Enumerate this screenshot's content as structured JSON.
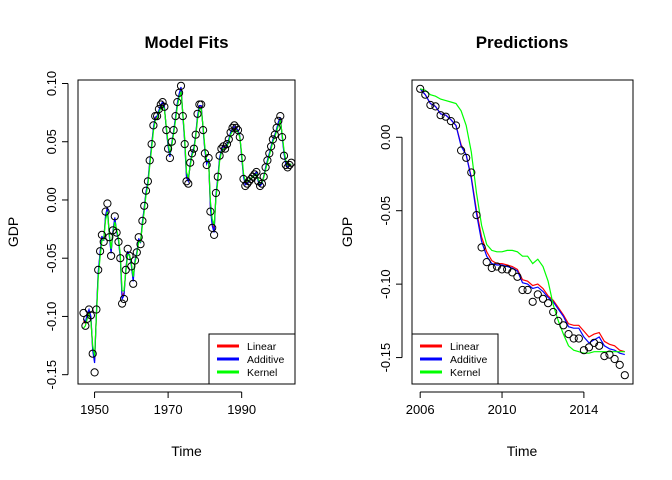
{
  "chart_data": [
    {
      "type": "line",
      "title": "Model Fits",
      "xlabel": "Time",
      "ylabel": "GDP",
      "xlim": [
        1945.5,
        2004.5
      ],
      "ylim": [
        -0.158,
        0.103
      ],
      "x_ticks": [
        1950,
        1970,
        1990
      ],
      "y_ticks": [
        -0.15,
        -0.1,
        -0.05,
        0.0,
        0.05,
        0.1
      ],
      "y_tick_labels": [
        "-0.15",
        "-0.10",
        "-0.05",
        "0.00",
        "0.05",
        "0.10"
      ],
      "grid": false,
      "legend_position": "bottom-right",
      "observed": {
        "x": [
          1947.0,
          1947.5,
          1948.0,
          1948.5,
          1949.0,
          1949.5,
          1950.0,
          1950.5,
          1951.0,
          1951.5,
          1952.0,
          1952.5,
          1953.0,
          1953.5,
          1954.0,
          1954.5,
          1955.0,
          1955.5,
          1956.0,
          1956.5,
          1957.0,
          1957.5,
          1958.0,
          1958.5,
          1959.0,
          1959.5,
          1960.0,
          1960.5,
          1961.0,
          1961.5,
          1962.0,
          1962.5,
          1963.0,
          1963.5,
          1964.0,
          1964.5,
          1965.0,
          1965.5,
          1966.0,
          1966.5,
          1967.0,
          1967.5,
          1968.0,
          1968.5,
          1969.0,
          1969.5,
          1970.0,
          1970.5,
          1971.0,
          1971.5,
          1972.0,
          1972.5,
          1973.0,
          1973.5,
          1974.0,
          1974.5,
          1975.0,
          1975.5,
          1976.0,
          1976.5,
          1977.0,
          1977.5,
          1978.0,
          1978.5,
          1979.0,
          1979.5,
          1980.0,
          1980.5,
          1981.0,
          1981.5,
          1982.0,
          1982.5,
          1983.0,
          1983.5,
          1984.0,
          1984.5,
          1985.0,
          1985.5,
          1986.0,
          1986.5,
          1987.0,
          1987.5,
          1988.0,
          1988.5,
          1989.0,
          1989.5,
          1990.0,
          1990.5,
          1991.0,
          1991.5,
          1992.0,
          1992.5,
          1993.0,
          1993.5,
          1994.0,
          1994.5,
          1995.0,
          1995.5,
          1996.0,
          1996.5,
          1997.0,
          1997.5,
          1998.0,
          1998.5,
          1999.0,
          1999.5,
          2000.0,
          2000.5,
          2001.0,
          2001.5,
          2002.0,
          2002.5,
          2003.0,
          2003.5
        ],
        "y": [
          -0.097,
          -0.108,
          -0.102,
          -0.094,
          -0.099,
          -0.132,
          -0.148,
          -0.094,
          -0.06,
          -0.044,
          -0.03,
          -0.036,
          -0.01,
          -0.003,
          -0.032,
          -0.048,
          -0.026,
          -0.014,
          -0.028,
          -0.036,
          -0.05,
          -0.089,
          -0.085,
          -0.06,
          -0.042,
          -0.048,
          -0.057,
          -0.072,
          -0.052,
          -0.045,
          -0.032,
          -0.038,
          -0.018,
          -0.005,
          0.008,
          0.016,
          0.034,
          0.048,
          0.064,
          0.072,
          0.072,
          0.078,
          0.082,
          0.084,
          0.08,
          0.06,
          0.044,
          0.036,
          0.05,
          0.06,
          0.072,
          0.084,
          0.092,
          0.098,
          0.072,
          0.048,
          0.016,
          0.014,
          0.032,
          0.04,
          0.044,
          0.056,
          0.074,
          0.082,
          0.082,
          0.06,
          0.04,
          0.03,
          0.036,
          -0.01,
          -0.024,
          -0.03,
          0.006,
          0.02,
          0.038,
          0.044,
          0.046,
          0.044,
          0.048,
          0.052,
          0.058,
          0.062,
          0.064,
          0.062,
          0.06,
          0.054,
          0.036,
          0.018,
          0.012,
          0.014,
          0.016,
          0.018,
          0.02,
          0.022,
          0.024,
          0.016,
          0.012,
          0.014,
          0.02,
          0.028,
          0.034,
          0.04,
          0.046,
          0.052,
          0.056,
          0.062,
          0.068,
          0.072,
          0.054,
          0.038,
          0.03,
          0.028,
          0.03,
          0.032
        ]
      },
      "series": [
        {
          "name": "Linear",
          "color": "#ff0000",
          "values": [
            -0.104,
            -0.106,
            -0.1,
            -0.096,
            -0.102,
            -0.128,
            -0.138,
            -0.098,
            -0.064,
            -0.046,
            -0.032,
            -0.034,
            -0.014,
            -0.007,
            -0.03,
            -0.044,
            -0.028,
            -0.017,
            -0.026,
            -0.034,
            -0.049,
            -0.082,
            -0.08,
            -0.061,
            -0.045,
            -0.047,
            -0.055,
            -0.068,
            -0.053,
            -0.046,
            -0.034,
            -0.036,
            -0.02,
            -0.008,
            0.006,
            0.015,
            0.031,
            0.046,
            0.061,
            0.07,
            0.071,
            0.076,
            0.081,
            0.083,
            0.079,
            0.062,
            0.047,
            0.038,
            0.048,
            0.058,
            0.07,
            0.082,
            0.09,
            0.096,
            0.074,
            0.051,
            0.021,
            0.017,
            0.03,
            0.039,
            0.044,
            0.055,
            0.071,
            0.08,
            0.08,
            0.062,
            0.043,
            0.032,
            0.034,
            -0.005,
            -0.02,
            -0.026,
            0.003,
            0.018,
            0.035,
            0.042,
            0.045,
            0.044,
            0.047,
            0.051,
            0.057,
            0.06,
            0.062,
            0.061,
            0.059,
            0.054,
            0.038,
            0.021,
            0.014,
            0.015,
            0.016,
            0.018,
            0.02,
            0.022,
            0.023,
            0.017,
            0.013,
            0.015,
            0.02,
            0.027,
            0.033,
            0.039,
            0.045,
            0.051,
            0.055,
            0.06,
            0.066,
            0.07,
            0.056,
            0.041,
            0.032,
            0.029,
            0.03,
            0.031
          ]
        },
        {
          "name": "Additive",
          "color": "#0000ff",
          "values": [
            -0.102,
            -0.105,
            -0.098,
            -0.094,
            -0.1,
            -0.129,
            -0.14,
            -0.097,
            -0.062,
            -0.045,
            -0.031,
            -0.035,
            -0.013,
            -0.006,
            -0.031,
            -0.046,
            -0.027,
            -0.015,
            -0.027,
            -0.035,
            -0.05,
            -0.085,
            -0.082,
            -0.06,
            -0.044,
            -0.048,
            -0.056,
            -0.07,
            -0.052,
            -0.045,
            -0.033,
            -0.037,
            -0.019,
            -0.007,
            0.007,
            0.016,
            0.032,
            0.047,
            0.062,
            0.071,
            0.072,
            0.077,
            0.082,
            0.084,
            0.08,
            0.061,
            0.046,
            0.037,
            0.049,
            0.059,
            0.071,
            0.083,
            0.091,
            0.097,
            0.073,
            0.05,
            0.019,
            0.016,
            0.031,
            0.04,
            0.045,
            0.056,
            0.072,
            0.081,
            0.081,
            0.061,
            0.042,
            0.031,
            0.035,
            -0.007,
            -0.022,
            -0.028,
            0.004,
            0.019,
            0.036,
            0.043,
            0.046,
            0.045,
            0.048,
            0.052,
            0.058,
            0.061,
            0.063,
            0.062,
            0.06,
            0.055,
            0.037,
            0.02,
            0.013,
            0.014,
            0.016,
            0.018,
            0.02,
            0.022,
            0.024,
            0.016,
            0.012,
            0.014,
            0.02,
            0.028,
            0.034,
            0.04,
            0.046,
            0.052,
            0.056,
            0.061,
            0.067,
            0.071,
            0.055,
            0.04,
            0.031,
            0.028,
            0.03,
            0.031
          ]
        },
        {
          "name": "Kernel",
          "color": "#00ff00",
          "values": [
            -0.11,
            -0.108,
            -0.102,
            -0.098,
            -0.104,
            -0.125,
            -0.134,
            -0.1,
            -0.067,
            -0.049,
            -0.035,
            -0.034,
            -0.017,
            -0.01,
            -0.029,
            -0.042,
            -0.029,
            -0.019,
            -0.025,
            -0.033,
            -0.047,
            -0.078,
            -0.078,
            -0.062,
            -0.047,
            -0.047,
            -0.054,
            -0.066,
            -0.054,
            -0.047,
            -0.036,
            -0.036,
            -0.022,
            -0.01,
            0.004,
            0.013,
            0.029,
            0.044,
            0.059,
            0.068,
            0.07,
            0.075,
            0.079,
            0.081,
            0.078,
            0.063,
            0.049,
            0.04,
            0.047,
            0.057,
            0.068,
            0.08,
            0.088,
            0.093,
            0.075,
            0.053,
            0.024,
            0.019,
            0.029,
            0.038,
            0.043,
            0.054,
            0.069,
            0.078,
            0.078,
            0.063,
            0.045,
            0.034,
            0.033,
            -0.001,
            -0.016,
            -0.022,
            0.001,
            0.016,
            0.033,
            0.041,
            0.044,
            0.044,
            0.046,
            0.05,
            0.056,
            0.059,
            0.061,
            0.06,
            0.058,
            0.054,
            0.04,
            0.023,
            0.016,
            0.016,
            0.017,
            0.018,
            0.02,
            0.021,
            0.022,
            0.018,
            0.014,
            0.015,
            0.019,
            0.026,
            0.032,
            0.038,
            0.044,
            0.05,
            0.054,
            0.059,
            0.064,
            0.068,
            0.057,
            0.043,
            0.034,
            0.03,
            0.03,
            0.031
          ]
        }
      ]
    },
    {
      "type": "line",
      "title": "Predictions",
      "xlabel": "Time",
      "ylabel": "GDP",
      "xlim": [
        2005.6,
        2016.4
      ],
      "ylim": [
        -0.168,
        0.039
      ],
      "x_ticks": [
        2006,
        2010,
        2014
      ],
      "y_ticks": [
        -0.15,
        -0.1,
        -0.05,
        0.0
      ],
      "y_tick_labels": [
        "-0.15",
        "-0.10",
        "-0.05",
        "0.00"
      ],
      "grid": false,
      "legend_position": "bottom-left",
      "observed": {
        "x": [
          2006.0,
          2006.25,
          2006.5,
          2006.75,
          2007.0,
          2007.25,
          2007.5,
          2007.75,
          2008.0,
          2008.25,
          2008.5,
          2008.75,
          2009.0,
          2009.25,
          2009.5,
          2009.75,
          2010.0,
          2010.25,
          2010.5,
          2010.75,
          2011.0,
          2011.25,
          2011.5,
          2011.75,
          2012.0,
          2012.25,
          2012.5,
          2012.75,
          2013.0,
          2013.25,
          2013.5,
          2013.75,
          2014.0,
          2014.25,
          2014.5,
          2014.75,
          2015.0,
          2015.25,
          2015.5,
          2015.75,
          2016.0
        ],
        "y": [
          0.033,
          0.029,
          0.022,
          0.021,
          0.015,
          0.014,
          0.011,
          0.008,
          -0.009,
          -0.014,
          -0.024,
          -0.053,
          -0.075,
          -0.085,
          -0.089,
          -0.088,
          -0.09,
          -0.09,
          -0.092,
          -0.095,
          -0.104,
          -0.104,
          -0.112,
          -0.107,
          -0.11,
          -0.113,
          -0.119,
          -0.125,
          -0.128,
          -0.134,
          -0.137,
          -0.137,
          -0.145,
          -0.143,
          -0.14,
          -0.142,
          -0.149,
          -0.148,
          -0.151,
          -0.155,
          -0.162
        ]
      },
      "series": [
        {
          "name": "Linear",
          "color": "#ff0000",
          "x": [
            2006.0,
            2006.25,
            2006.5,
            2006.75,
            2007.0,
            2007.25,
            2007.5,
            2007.75,
            2008.0,
            2008.25,
            2008.5,
            2008.75,
            2009.0,
            2009.25,
            2009.5,
            2009.75,
            2010.0,
            2010.25,
            2010.5,
            2010.75,
            2011.0,
            2011.25,
            2011.5,
            2011.75,
            2012.0,
            2012.25,
            2012.5,
            2012.75,
            2013.0,
            2013.25,
            2013.5,
            2013.75,
            2014.0,
            2014.25,
            2014.5,
            2014.75,
            2015.0,
            2015.25,
            2015.5,
            2015.75,
            2016.0
          ],
          "values": [
            0.033,
            0.029,
            0.023,
            0.021,
            0.016,
            0.015,
            0.012,
            0.008,
            -0.005,
            -0.012,
            -0.027,
            -0.05,
            -0.068,
            -0.078,
            -0.084,
            -0.086,
            -0.086,
            -0.087,
            -0.088,
            -0.09,
            -0.097,
            -0.098,
            -0.101,
            -0.1,
            -0.103,
            -0.108,
            -0.111,
            -0.116,
            -0.121,
            -0.127,
            -0.128,
            -0.128,
            -0.132,
            -0.136,
            -0.134,
            -0.133,
            -0.139,
            -0.141,
            -0.142,
            -0.145,
            -0.146
          ]
        },
        {
          "name": "Additive",
          "color": "#0000ff",
          "x": [
            2006.0,
            2006.25,
            2006.5,
            2006.75,
            2007.0,
            2007.25,
            2007.5,
            2007.75,
            2008.0,
            2008.25,
            2008.5,
            2008.75,
            2009.0,
            2009.25,
            2009.5,
            2009.75,
            2010.0,
            2010.25,
            2010.5,
            2010.75,
            2011.0,
            2011.25,
            2011.5,
            2011.75,
            2012.0,
            2012.25,
            2012.5,
            2012.75,
            2013.0,
            2013.25,
            2013.5,
            2013.75,
            2014.0,
            2014.25,
            2014.5,
            2014.75,
            2015.0,
            2015.25,
            2015.5,
            2015.75,
            2016.0
          ],
          "values": [
            0.033,
            0.029,
            0.023,
            0.021,
            0.016,
            0.015,
            0.012,
            0.008,
            -0.006,
            -0.012,
            -0.028,
            -0.052,
            -0.071,
            -0.081,
            -0.086,
            -0.087,
            -0.087,
            -0.088,
            -0.089,
            -0.091,
            -0.099,
            -0.1,
            -0.103,
            -0.102,
            -0.105,
            -0.109,
            -0.112,
            -0.117,
            -0.122,
            -0.129,
            -0.13,
            -0.13,
            -0.136,
            -0.14,
            -0.138,
            -0.136,
            -0.142,
            -0.144,
            -0.145,
            -0.147,
            -0.148
          ]
        },
        {
          "name": "Kernel",
          "color": "#00ff00",
          "x": [
            2006.0,
            2006.25,
            2006.5,
            2006.75,
            2007.0,
            2007.25,
            2007.5,
            2007.75,
            2008.0,
            2008.25,
            2008.5,
            2008.75,
            2009.0,
            2009.25,
            2009.5,
            2009.75,
            2010.0,
            2010.25,
            2010.5,
            2010.75,
            2011.0,
            2011.25,
            2011.5,
            2011.75,
            2012.0,
            2012.25,
            2012.5,
            2012.75,
            2013.0,
            2013.25,
            2013.5,
            2013.75,
            2014.0,
            2014.25,
            2014.5,
            2014.75,
            2015.0,
            2015.25,
            2015.5,
            2015.75,
            2016.0
          ],
          "values": [
            0.033,
            0.032,
            0.029,
            0.028,
            0.026,
            0.025,
            0.024,
            0.023,
            0.018,
            0.008,
            -0.01,
            -0.038,
            -0.06,
            -0.073,
            -0.077,
            -0.078,
            -0.078,
            -0.077,
            -0.077,
            -0.078,
            -0.081,
            -0.081,
            -0.086,
            -0.083,
            -0.088,
            -0.098,
            -0.114,
            -0.125,
            -0.134,
            -0.142,
            -0.145,
            -0.146,
            -0.147,
            -0.147,
            -0.146,
            -0.146,
            -0.146,
            -0.146,
            -0.146,
            -0.146,
            -0.146
          ]
        }
      ]
    }
  ]
}
